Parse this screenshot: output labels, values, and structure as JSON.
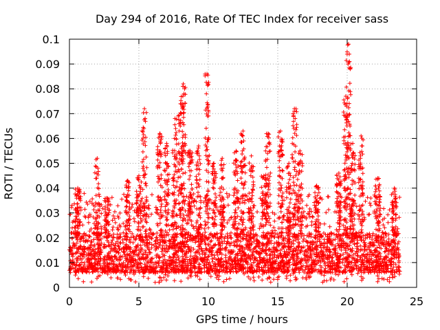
{
  "chart_data": {
    "type": "scatter",
    "title": "Day 294 of 2016, Rate Of TEC Index for receiver sass",
    "xlabel": "GPS time / hours",
    "ylabel": "ROTI / TECUs",
    "xlim": [
      0,
      25
    ],
    "ylim": [
      0,
      0.1
    ],
    "grid": true,
    "marker": "+",
    "marker_color": "#ff0000",
    "x_ticks": [
      "0",
      "5",
      "10",
      "15",
      "20",
      "25"
    ],
    "x_tick_values": [
      0,
      5,
      10,
      15,
      20,
      25
    ],
    "y_ticks": [
      "0",
      "0.01",
      "0.02",
      "0.03",
      "0.04",
      "0.05",
      "0.06",
      "0.07",
      "0.08",
      "0.09",
      "0.1"
    ],
    "y_tick_values": [
      0,
      0.01,
      0.02,
      0.03,
      0.04,
      0.05,
      0.06,
      0.07,
      0.08,
      0.09,
      0.1
    ],
    "data_x_range": [
      0,
      23.8
    ],
    "typical_range": [
      0.002,
      0.03
    ],
    "peaks": [
      {
        "x": 0.6,
        "y": 0.04
      },
      {
        "x": 2.0,
        "y": 0.052
      },
      {
        "x": 2.7,
        "y": 0.036
      },
      {
        "x": 4.2,
        "y": 0.043
      },
      {
        "x": 5.0,
        "y": 0.045
      },
      {
        "x": 5.4,
        "y": 0.072
      },
      {
        "x": 6.5,
        "y": 0.062
      },
      {
        "x": 7.0,
        "y": 0.058
      },
      {
        "x": 7.6,
        "y": 0.068
      },
      {
        "x": 8.0,
        "y": 0.074
      },
      {
        "x": 8.2,
        "y": 0.082
      },
      {
        "x": 8.7,
        "y": 0.055
      },
      {
        "x": 9.3,
        "y": 0.057
      },
      {
        "x": 9.9,
        "y": 0.086
      },
      {
        "x": 10.4,
        "y": 0.05
      },
      {
        "x": 11.0,
        "y": 0.052
      },
      {
        "x": 12.0,
        "y": 0.055
      },
      {
        "x": 12.5,
        "y": 0.063
      },
      {
        "x": 13.1,
        "y": 0.053
      },
      {
        "x": 14.0,
        "y": 0.045
      },
      {
        "x": 14.3,
        "y": 0.062
      },
      {
        "x": 15.2,
        "y": 0.063
      },
      {
        "x": 15.8,
        "y": 0.05
      },
      {
        "x": 16.2,
        "y": 0.072
      },
      {
        "x": 16.6,
        "y": 0.055
      },
      {
        "x": 17.8,
        "y": 0.041
      },
      {
        "x": 19.4,
        "y": 0.046
      },
      {
        "x": 19.9,
        "y": 0.077
      },
      {
        "x": 20.1,
        "y": 0.098
      },
      {
        "x": 20.4,
        "y": 0.058
      },
      {
        "x": 21.0,
        "y": 0.061
      },
      {
        "x": 22.2,
        "y": 0.044
      },
      {
        "x": 23.4,
        "y": 0.04
      }
    ]
  }
}
